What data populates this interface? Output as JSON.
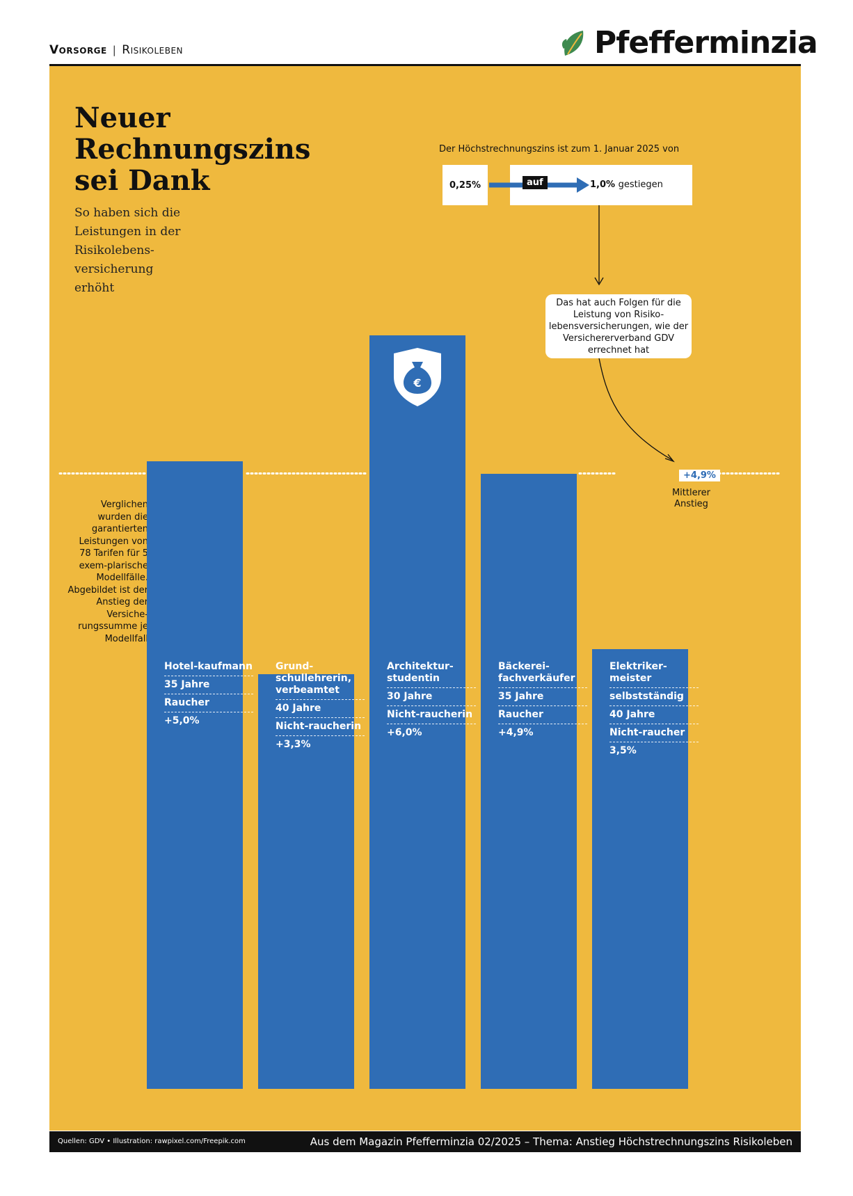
{
  "header": {
    "section": "Vorsorge",
    "separator": "|",
    "subsection": "Risikoleben",
    "brand": "Pfefferminzia"
  },
  "title": "Neuer Rechnungszins sei Dank",
  "subtitle": "So haben sich die Leistungen in der Risikolebens-versicherung erhöht",
  "rate_change": {
    "label": "Der Höchstrechnungszins ist zum 1. Januar 2025 von",
    "from_value": "0,25%",
    "connector": "auf",
    "to_value": "1,0%",
    "to_suffix": "gestiegen"
  },
  "consequence_note": "Das hat auch Folgen für die Leistung von Risiko-lebensversicherungen, wie der Versichererverband GDV errechnet hat",
  "side_note": "Verglichen wurden die garantierten Leistungen von 78 Tarifen für 5 exem-plarische Modellfälle. Abgebildet ist der Anstieg der Versiche-rungssumme je Modellfall",
  "average": {
    "value_label": "+4,9%",
    "label": "Mittlerer Anstieg"
  },
  "colors": {
    "background": "#efb93e",
    "bar": "#2f6db5",
    "accent_text": "#2f6db5"
  },
  "icons": [
    "leaf-logo-icon",
    "money-bag-shield-icon",
    "euro-icon"
  ],
  "chart_data": {
    "type": "bar",
    "title": "Neuer Rechnungszins sei Dank",
    "categories": [
      "Hotelkaufmann",
      "Grundschullehrerin, verbeamtet",
      "Architekturstudentin",
      "Bäckereifachverkäufer",
      "Elektrikermeister"
    ],
    "values": [
      5.0,
      3.3,
      6.0,
      4.9,
      3.5
    ],
    "unit": "%",
    "reference_line": {
      "value": 4.9,
      "label": "Mittlerer Anstieg"
    },
    "ylim": [
      0,
      6.0
    ],
    "xlabel": "",
    "ylabel": "",
    "grid": false,
    "bars": [
      {
        "name": "Hotel-kaufmann",
        "age": "35 Jahre",
        "status": "Raucher",
        "value_label": "+5,0%"
      },
      {
        "name": "Grund-schullehrerin, verbeamtet",
        "age": "40 Jahre",
        "status": "Nicht-raucherin",
        "value_label": "+3,3%"
      },
      {
        "name": "Architektur-studentin",
        "age": "30 Jahre",
        "status": "Nicht-raucherin",
        "value_label": "+6,0%"
      },
      {
        "name": "Bäckerei-fachverkäufer",
        "age": "35 Jahre",
        "status": "Raucher",
        "value_label": "+4,9%"
      },
      {
        "name": "Elektriker-meister",
        "extra": "selbstständig",
        "age": "40 Jahre",
        "status": "Nicht-raucher",
        "value_label": "3,5%"
      }
    ]
  },
  "footer": {
    "sources": "Quellen: GDV • Illustration: rawpixel.com/Freepik.com",
    "magazine": "Aus dem Magazin Pfefferminzia 02/2025 – Thema: Anstieg Höchstrechnungszins Risikoleben"
  }
}
